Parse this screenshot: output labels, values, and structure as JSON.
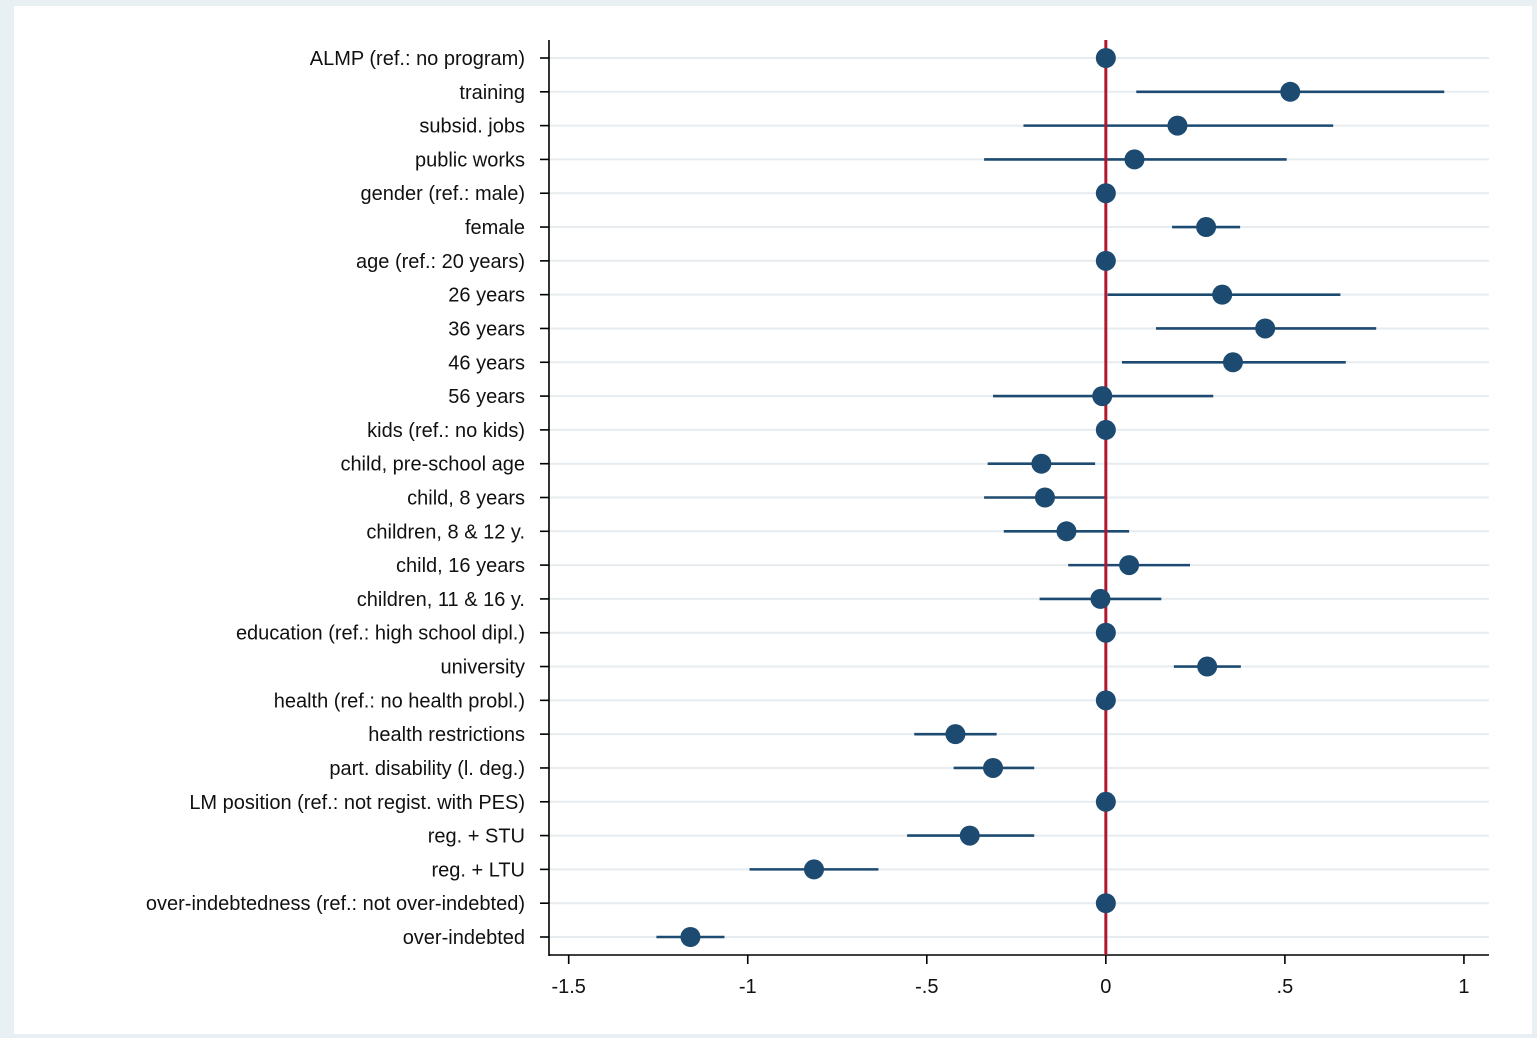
{
  "chart_data": {
    "type": "scatter",
    "subtype": "coefficient-plot-with-confidence-intervals",
    "orientation": "horizontal",
    "categories": [
      "ALMP (ref.: no program)",
      "training",
      "subsid. jobs",
      "public works",
      "gender (ref.: male)",
      "female",
      "age (ref.: 20 years)",
      "26 years",
      "36 years",
      "46 years",
      "56 years",
      "kids (ref.: no kids)",
      "child, pre-school age",
      "child, 8 years",
      "children, 8 & 12 y.",
      "child, 16 years",
      "children, 11 & 16 y.",
      "education (ref.: high school dipl.)",
      "university",
      "health (ref.: no health probl.)",
      "health restrictions",
      "part. disability (l. deg.)",
      "LM position (ref.: not regist. with PES)",
      "reg. + STU",
      "reg. + LTU",
      "over-indebtedness (ref.: not over-indebted)",
      "over-indebted"
    ],
    "estimates": [
      0,
      0.515,
      0.2,
      0.08,
      0,
      0.28,
      0,
      0.325,
      0.445,
      0.355,
      -0.01,
      0,
      -0.18,
      -0.17,
      -0.11,
      0.065,
      -0.015,
      0,
      0.283,
      0,
      -0.42,
      -0.315,
      0,
      -0.38,
      -0.815,
      0,
      -1.16
    ],
    "ci_lower": [
      null,
      0.085,
      -0.23,
      -0.34,
      null,
      0.185,
      null,
      0.005,
      0.14,
      0.045,
      -0.315,
      null,
      -0.33,
      -0.34,
      -0.285,
      -0.105,
      -0.185,
      null,
      0.19,
      null,
      -0.535,
      -0.425,
      null,
      -0.555,
      -0.995,
      null,
      -1.255
    ],
    "ci_upper": [
      null,
      0.945,
      0.635,
      0.505,
      null,
      0.375,
      null,
      0.655,
      0.755,
      0.67,
      0.3,
      null,
      -0.03,
      0.0,
      0.065,
      0.235,
      0.155,
      null,
      0.377,
      null,
      -0.305,
      -0.2,
      null,
      -0.2,
      -0.635,
      null,
      -1.065
    ],
    "x_ticks": [
      -1.5,
      -1,
      -0.5,
      0,
      0.5,
      1
    ],
    "x_tick_labels": [
      "-1.5",
      "-1",
      "-.5",
      "0",
      ".5",
      "1"
    ],
    "xlim": [
      -1.555,
      1.07
    ],
    "reference_line": 0,
    "title": "",
    "xlabel": "",
    "ylabel": "",
    "grid": true,
    "legend": "none",
    "colors": {
      "outer_background": "#e9f0f3",
      "plot_background": "#ffffff",
      "gridline": "#e6ecef",
      "marker": "#1d4a70",
      "ci_line": "#1d4a70",
      "reference_line": "#b0182f",
      "axis": "#000000"
    }
  }
}
